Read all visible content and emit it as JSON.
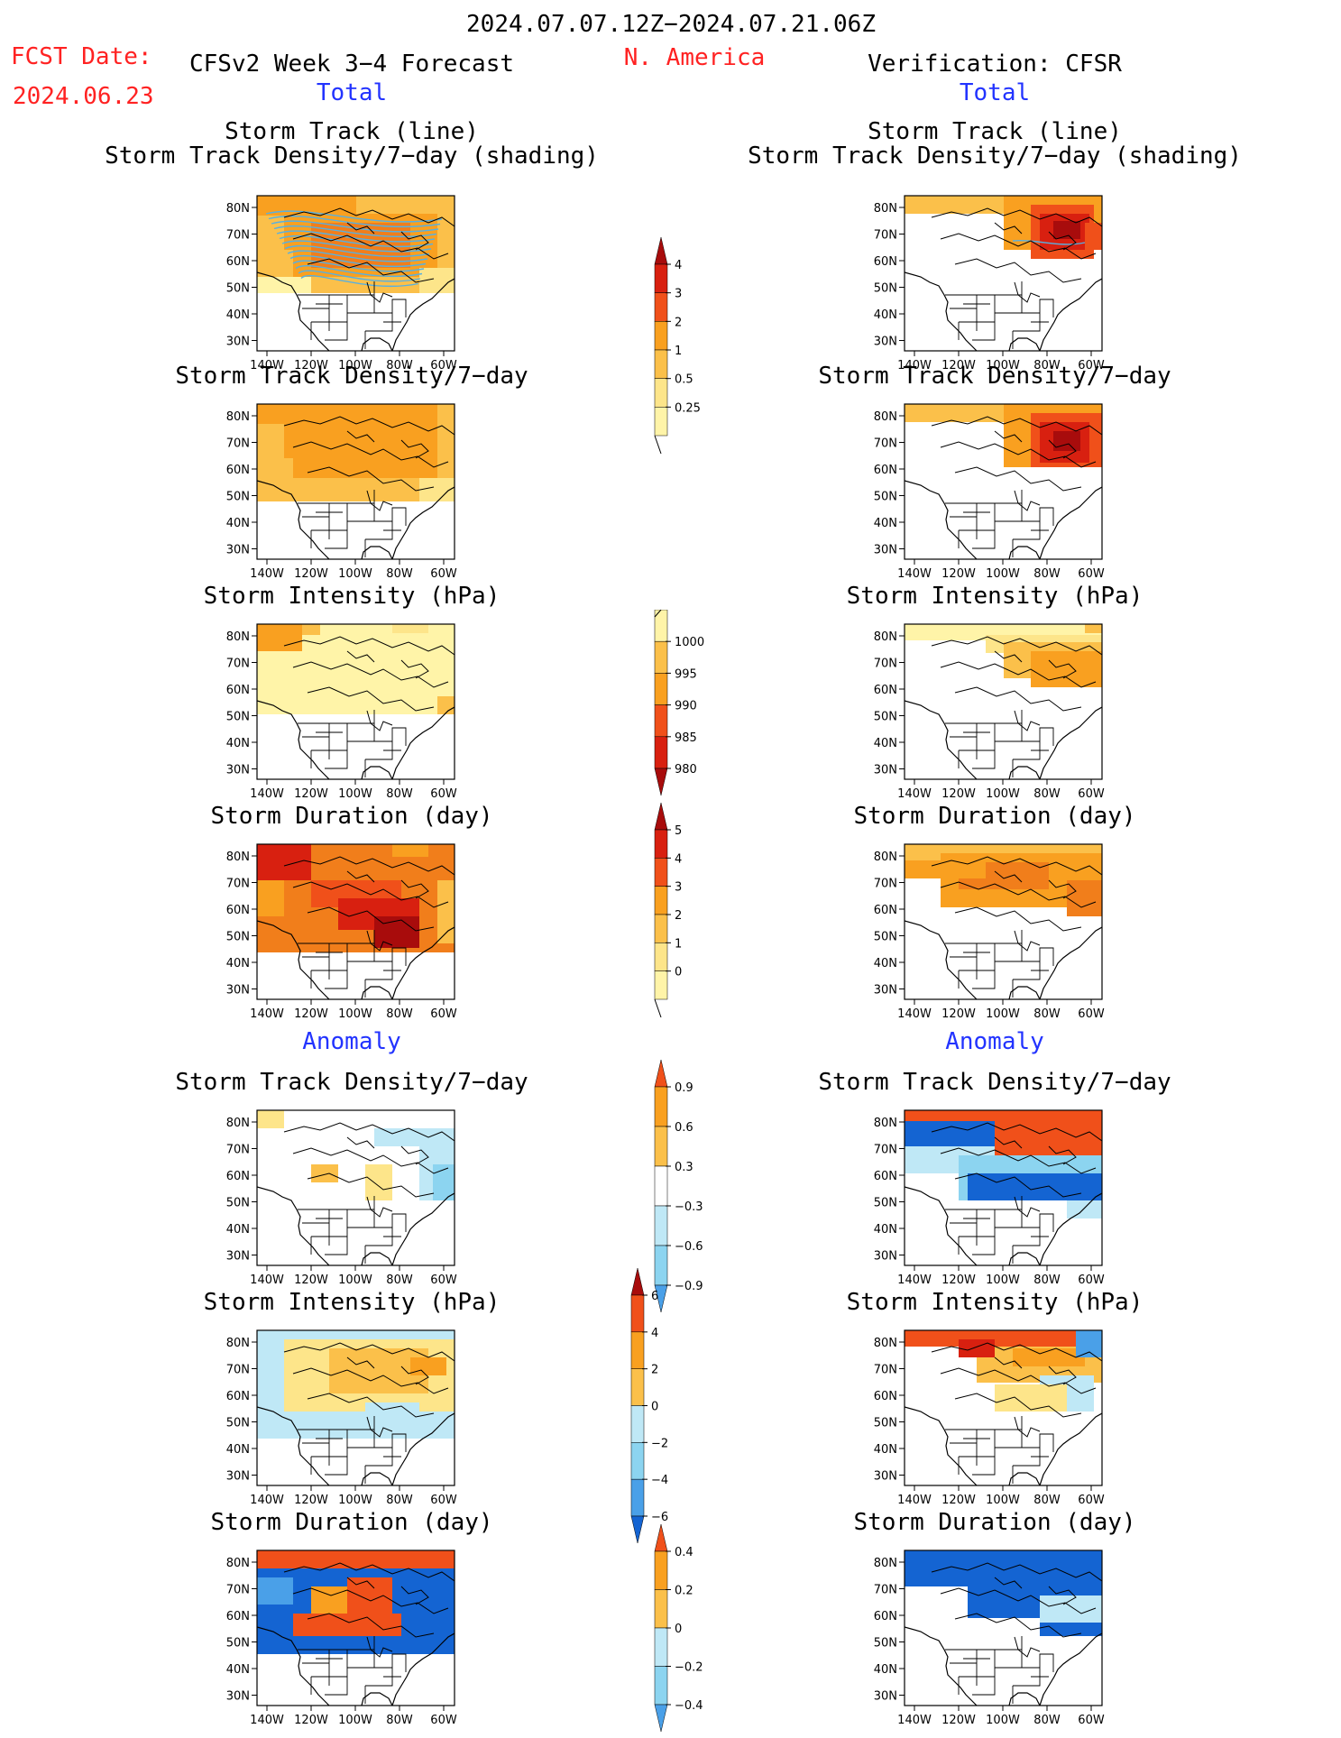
{
  "header": {
    "period": "2024.07.07.12Z−2024.07.21.06Z",
    "fcst_label": "FCST Date:",
    "fcst_date": "2024.06.23",
    "forecast_title": "CFSv2 Week 3−4 Forecast",
    "region": "N. America",
    "verification_title": "Verification: CFSR"
  },
  "sections": {
    "total": "Total",
    "anomaly": "Anomaly"
  },
  "titles": {
    "storm_track_line": "Storm Track (line)",
    "storm_track_density_shading": "Storm Track Density/7−day (shading)",
    "storm_track_density": "Storm Track Density/7−day",
    "storm_intensity": "Storm Intensity (hPa)",
    "storm_duration": "Storm Duration (day)"
  },
  "axes": {
    "lat_ticks": [
      "80N",
      "70N",
      "60N",
      "50N",
      "40N",
      "30N"
    ],
    "lon_ticks": [
      "140W",
      "120W",
      "100W",
      "80W",
      "60W"
    ]
  },
  "colorbars": {
    "density_total": [
      "4",
      "3",
      "2",
      "1",
      "0.5",
      "0.25"
    ],
    "intensity_total": [
      "1000",
      "995",
      "990",
      "985",
      "980"
    ],
    "duration_total": [
      "5",
      "4",
      "3",
      "2",
      "1",
      "0"
    ],
    "density_anom": [
      "0.9",
      "0.6",
      "0.3",
      "−0.3",
      "−0.6",
      "−0.9"
    ],
    "intensity_anom": [
      "6",
      "4",
      "2",
      "0",
      "−2",
      "−4",
      "−6"
    ],
    "duration_anom": [
      "0.4",
      "0.2",
      "0",
      "−0.2",
      "−0.4"
    ]
  },
  "colors": {
    "pale_yellow": "#fff4a8",
    "yellow": "#fde58a",
    "gold": "#fbc04a",
    "orange": "#f9a020",
    "dark_orange": "#f17e1b",
    "red_orange": "#f0501a",
    "red": "#d82010",
    "dark_red": "#a80c0c",
    "light_blue": "#bfe8f6",
    "sky_blue": "#8cd4f0",
    "blue": "#4aa0e8",
    "deep_blue": "#1464d2",
    "title_red": "#ff2222",
    "title_blue": "#2233ff"
  }
}
